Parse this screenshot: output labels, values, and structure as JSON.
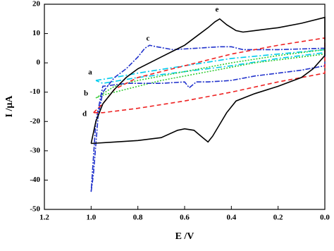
{
  "chart_data": {
    "type": "line",
    "xlabel": "E /V",
    "ylabel": "I /µA",
    "xlim": [
      1.2,
      0.0
    ],
    "ylim": [
      -50,
      20
    ],
    "xticks": [
      {
        "value": 1.2,
        "label": "1.2"
      },
      {
        "value": 1.0,
        "label": "1.0"
      },
      {
        "value": 0.8,
        "label": "0.8"
      },
      {
        "value": 0.6,
        "label": "0.6"
      },
      {
        "value": 0.4,
        "label": "0.4"
      },
      {
        "value": 0.2,
        "label": "0.2"
      },
      {
        "value": 0.0,
        "label": "0.0"
      }
    ],
    "yticks": [
      20,
      10,
      0,
      -10,
      -20,
      -30,
      -40,
      -50
    ],
    "series": [
      {
        "name": "a",
        "color": "#00ccee",
        "x": [
          0.98,
          0.9,
          0.8,
          0.6,
          0.4,
          0.2,
          0.0,
          0.0,
          0.2,
          0.4,
          0.6,
          0.8,
          0.95,
          0.98
        ],
        "values": [
          -6,
          -5,
          -3.5,
          -1,
          1.5,
          3,
          4.5,
          3.5,
          1.5,
          -1,
          -3,
          -5,
          -7,
          -6
        ]
      },
      {
        "name": "b",
        "color": "#33cc33",
        "x": [
          0.98,
          0.9,
          0.8,
          0.6,
          0.4,
          0.2,
          0.0,
          0.0,
          0.3,
          0.5,
          0.7,
          0.85,
          0.95,
          0.98
        ],
        "values": [
          -12,
          -8,
          -6,
          -3,
          0,
          2.5,
          4.5,
          3,
          0,
          -3,
          -6,
          -9,
          -11,
          -12
        ]
      },
      {
        "name": "c",
        "color": "#2233cc",
        "x": [
          1.0,
          0.99,
          0.98,
          0.97,
          0.95,
          0.9,
          0.85,
          0.8,
          0.77,
          0.75,
          0.72,
          0.65,
          0.55,
          0.45,
          0.4,
          0.35,
          0.2,
          0.0,
          0.0,
          0.1,
          0.2,
          0.3,
          0.4,
          0.5,
          0.55,
          0.58,
          0.6,
          0.7,
          0.85,
          0.95,
          0.98,
          1.0
        ],
        "values": [
          -44,
          -38,
          -28,
          -18,
          -10,
          -5,
          -2,
          2,
          5,
          6,
          5.5,
          4.5,
          5,
          5.5,
          5.5,
          4.5,
          4.5,
          5,
          -1,
          -2.5,
          -3.5,
          -4.5,
          -6,
          -6.5,
          -6.5,
          -8.5,
          -6.5,
          -7,
          -7,
          -8,
          -20,
          -44
        ]
      },
      {
        "name": "d",
        "color": "#ee2222",
        "x": [
          0.99,
          0.95,
          0.9,
          0.8,
          0.6,
          0.4,
          0.2,
          0.0,
          0.0,
          0.2,
          0.4,
          0.6,
          0.8,
          0.95,
          0.99
        ],
        "values": [
          -17,
          -14,
          -9,
          -5,
          -1,
          3,
          6,
          8.5,
          -3.5,
          -6.5,
          -10,
          -13,
          -15.5,
          -17,
          -17
        ]
      },
      {
        "name": "e",
        "color": "#000000",
        "x": [
          1.0,
          0.98,
          0.95,
          0.9,
          0.85,
          0.8,
          0.7,
          0.6,
          0.55,
          0.5,
          0.47,
          0.45,
          0.42,
          0.38,
          0.35,
          0.3,
          0.2,
          0.1,
          0.0,
          0.0,
          0.05,
          0.1,
          0.2,
          0.3,
          0.38,
          0.42,
          0.45,
          0.48,
          0.5,
          0.53,
          0.56,
          0.6,
          0.63,
          0.7,
          0.8,
          0.9,
          1.0
        ],
        "values": [
          -27.5,
          -20,
          -14,
          -9,
          -5,
          -2,
          2,
          6,
          9,
          12,
          14,
          15,
          13,
          11,
          10.5,
          11,
          12,
          13.5,
          15.5,
          2.5,
          -2,
          -5,
          -8,
          -10.5,
          -13,
          -17,
          -21,
          -25,
          -27,
          -25,
          -23,
          -22.5,
          -23,
          -25.5,
          -26.5,
          -27,
          -27.5
        ]
      }
    ]
  }
}
